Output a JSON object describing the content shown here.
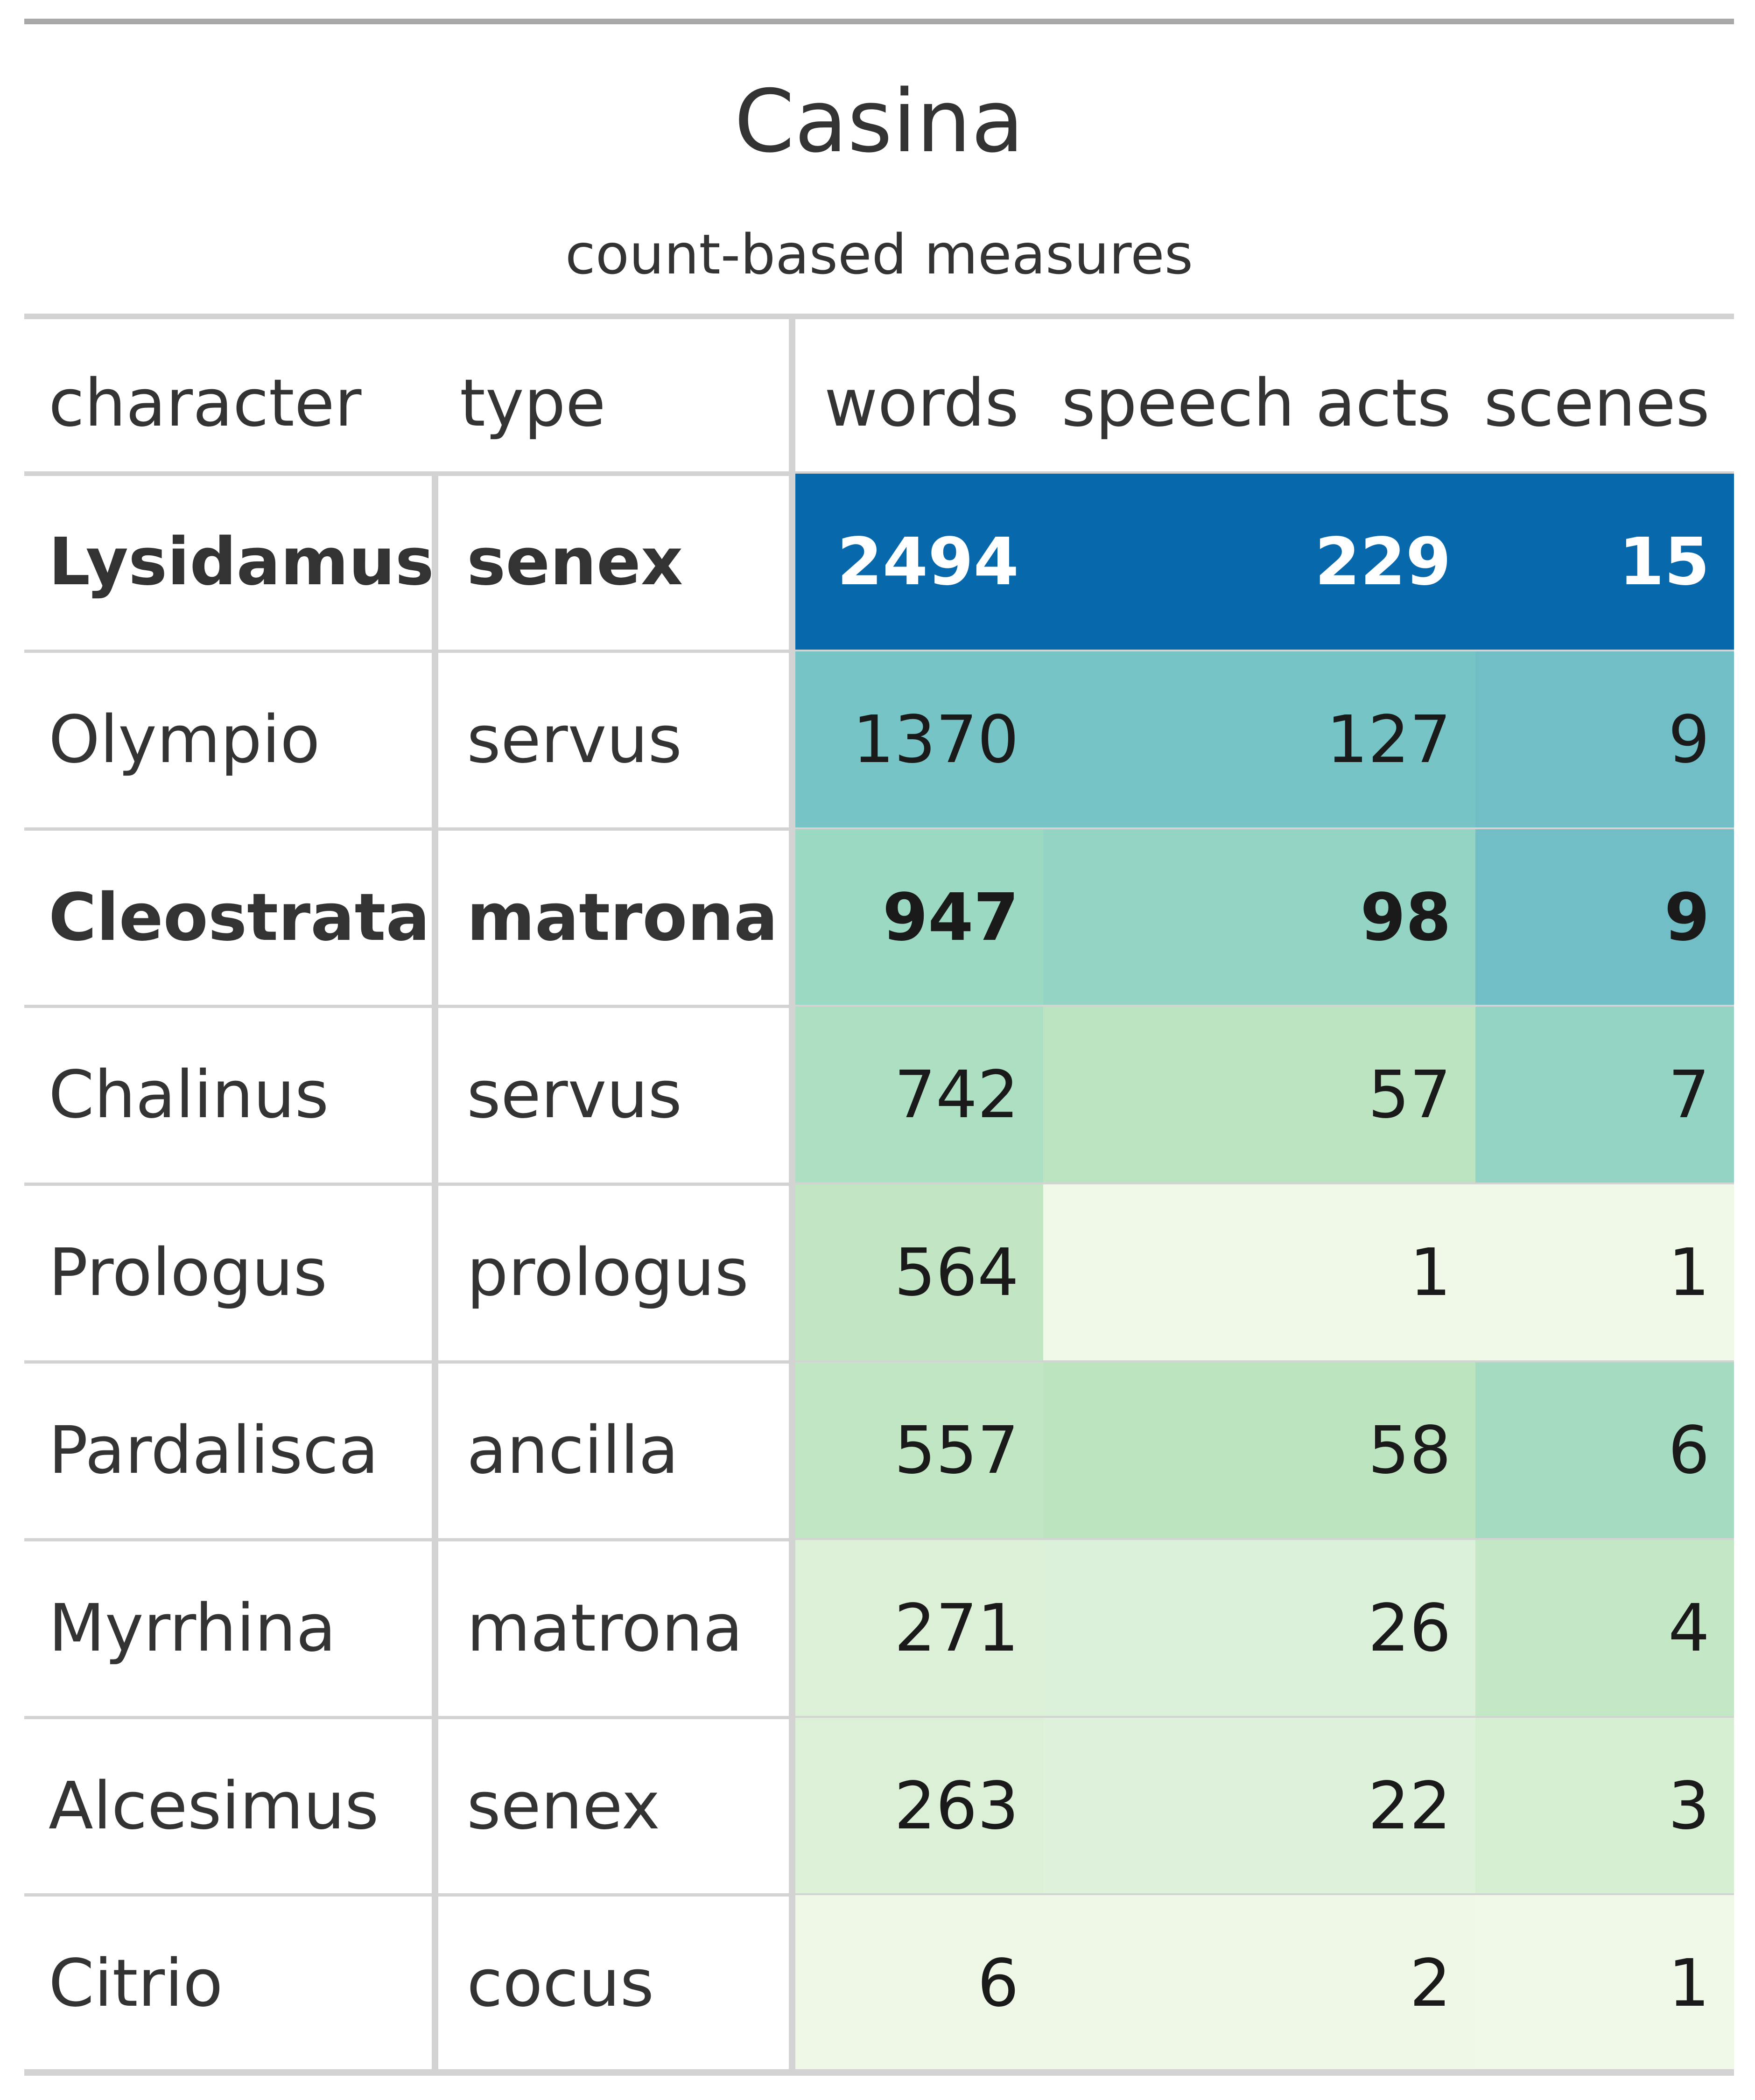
{
  "header": {
    "title": "Casina",
    "subtitle": "count-based measures"
  },
  "columns": [
    "character",
    "type",
    "words",
    "speech acts",
    "scenes"
  ],
  "chart_data": {
    "type": "table",
    "title": "Casina",
    "subtitle": "count-based measures",
    "columns": [
      "character",
      "type",
      "words",
      "speech acts",
      "scenes"
    ],
    "rows": [
      {
        "character": "Lysidamus",
        "type": "senex",
        "words": 2494,
        "speech_acts": 229,
        "scenes": 15,
        "bold": true,
        "colors": {
          "words": "#0868ac",
          "speech_acts": "#0868ac",
          "scenes": "#0868ac"
        }
      },
      {
        "character": "Olympio",
        "type": "servus",
        "words": 1370,
        "speech_acts": 127,
        "scenes": 9,
        "bold": false,
        "colors": {
          "words": "#77c4c7",
          "speech_acts": "#77c4c7",
          "scenes": "#72bec6"
        }
      },
      {
        "character": "Cleostrata",
        "type": "matrona",
        "words": 947,
        "speech_acts": 98,
        "scenes": 9,
        "bold": true,
        "colors": {
          "words": "#9cd9c2",
          "speech_acts": "#93d4c4",
          "scenes": "#72bec6"
        }
      },
      {
        "character": "Chalinus",
        "type": "servus",
        "words": 742,
        "speech_acts": 57,
        "scenes": 7,
        "bold": false,
        "colors": {
          "words": "#ade0c3",
          "speech_acts": "#bce4c1",
          "scenes": "#93d4c4"
        }
      },
      {
        "character": "Prologus",
        "type": "prologus",
        "words": 564,
        "speech_acts": 1,
        "scenes": 1,
        "bold": false,
        "colors": {
          "words": "#c2e6c4",
          "speech_acts": "#f0f9e8",
          "scenes": "#f0f9e8"
        }
      },
      {
        "character": "Pardalisca",
        "type": "ancilla",
        "words": 557,
        "speech_acts": 58,
        "scenes": 6,
        "bold": false,
        "colors": {
          "words": "#c1e6c3",
          "speech_acts": "#bce4bf",
          "scenes": "#a4dbc1"
        }
      },
      {
        "character": "Myrrhina",
        "type": "matrona",
        "words": 271,
        "speech_acts": 26,
        "scenes": 4,
        "bold": false,
        "colors": {
          "words": "#dbf0d7",
          "speech_acts": "#dbf0d8",
          "scenes": "#c4e7c5"
        }
      },
      {
        "character": "Alcesimus",
        "type": "senex",
        "words": 263,
        "speech_acts": 22,
        "scenes": 3,
        "bold": false,
        "colors": {
          "words": "#dbf0d7",
          "speech_acts": "#def1da",
          "scenes": "#d6eed2"
        }
      },
      {
        "character": "Citrio",
        "type": "cocus",
        "words": 6,
        "speech_acts": 2,
        "scenes": 1,
        "bold": false,
        "colors": {
          "words": "#eff8e7",
          "speech_acts": "#eff8e7",
          "scenes": "#f0f9e8"
        }
      }
    ]
  },
  "colors": {
    "rule": "#d3d3d3",
    "top_rule": "#a8a8a8",
    "text": "#333333",
    "highlight_text": "#ffffff"
  }
}
